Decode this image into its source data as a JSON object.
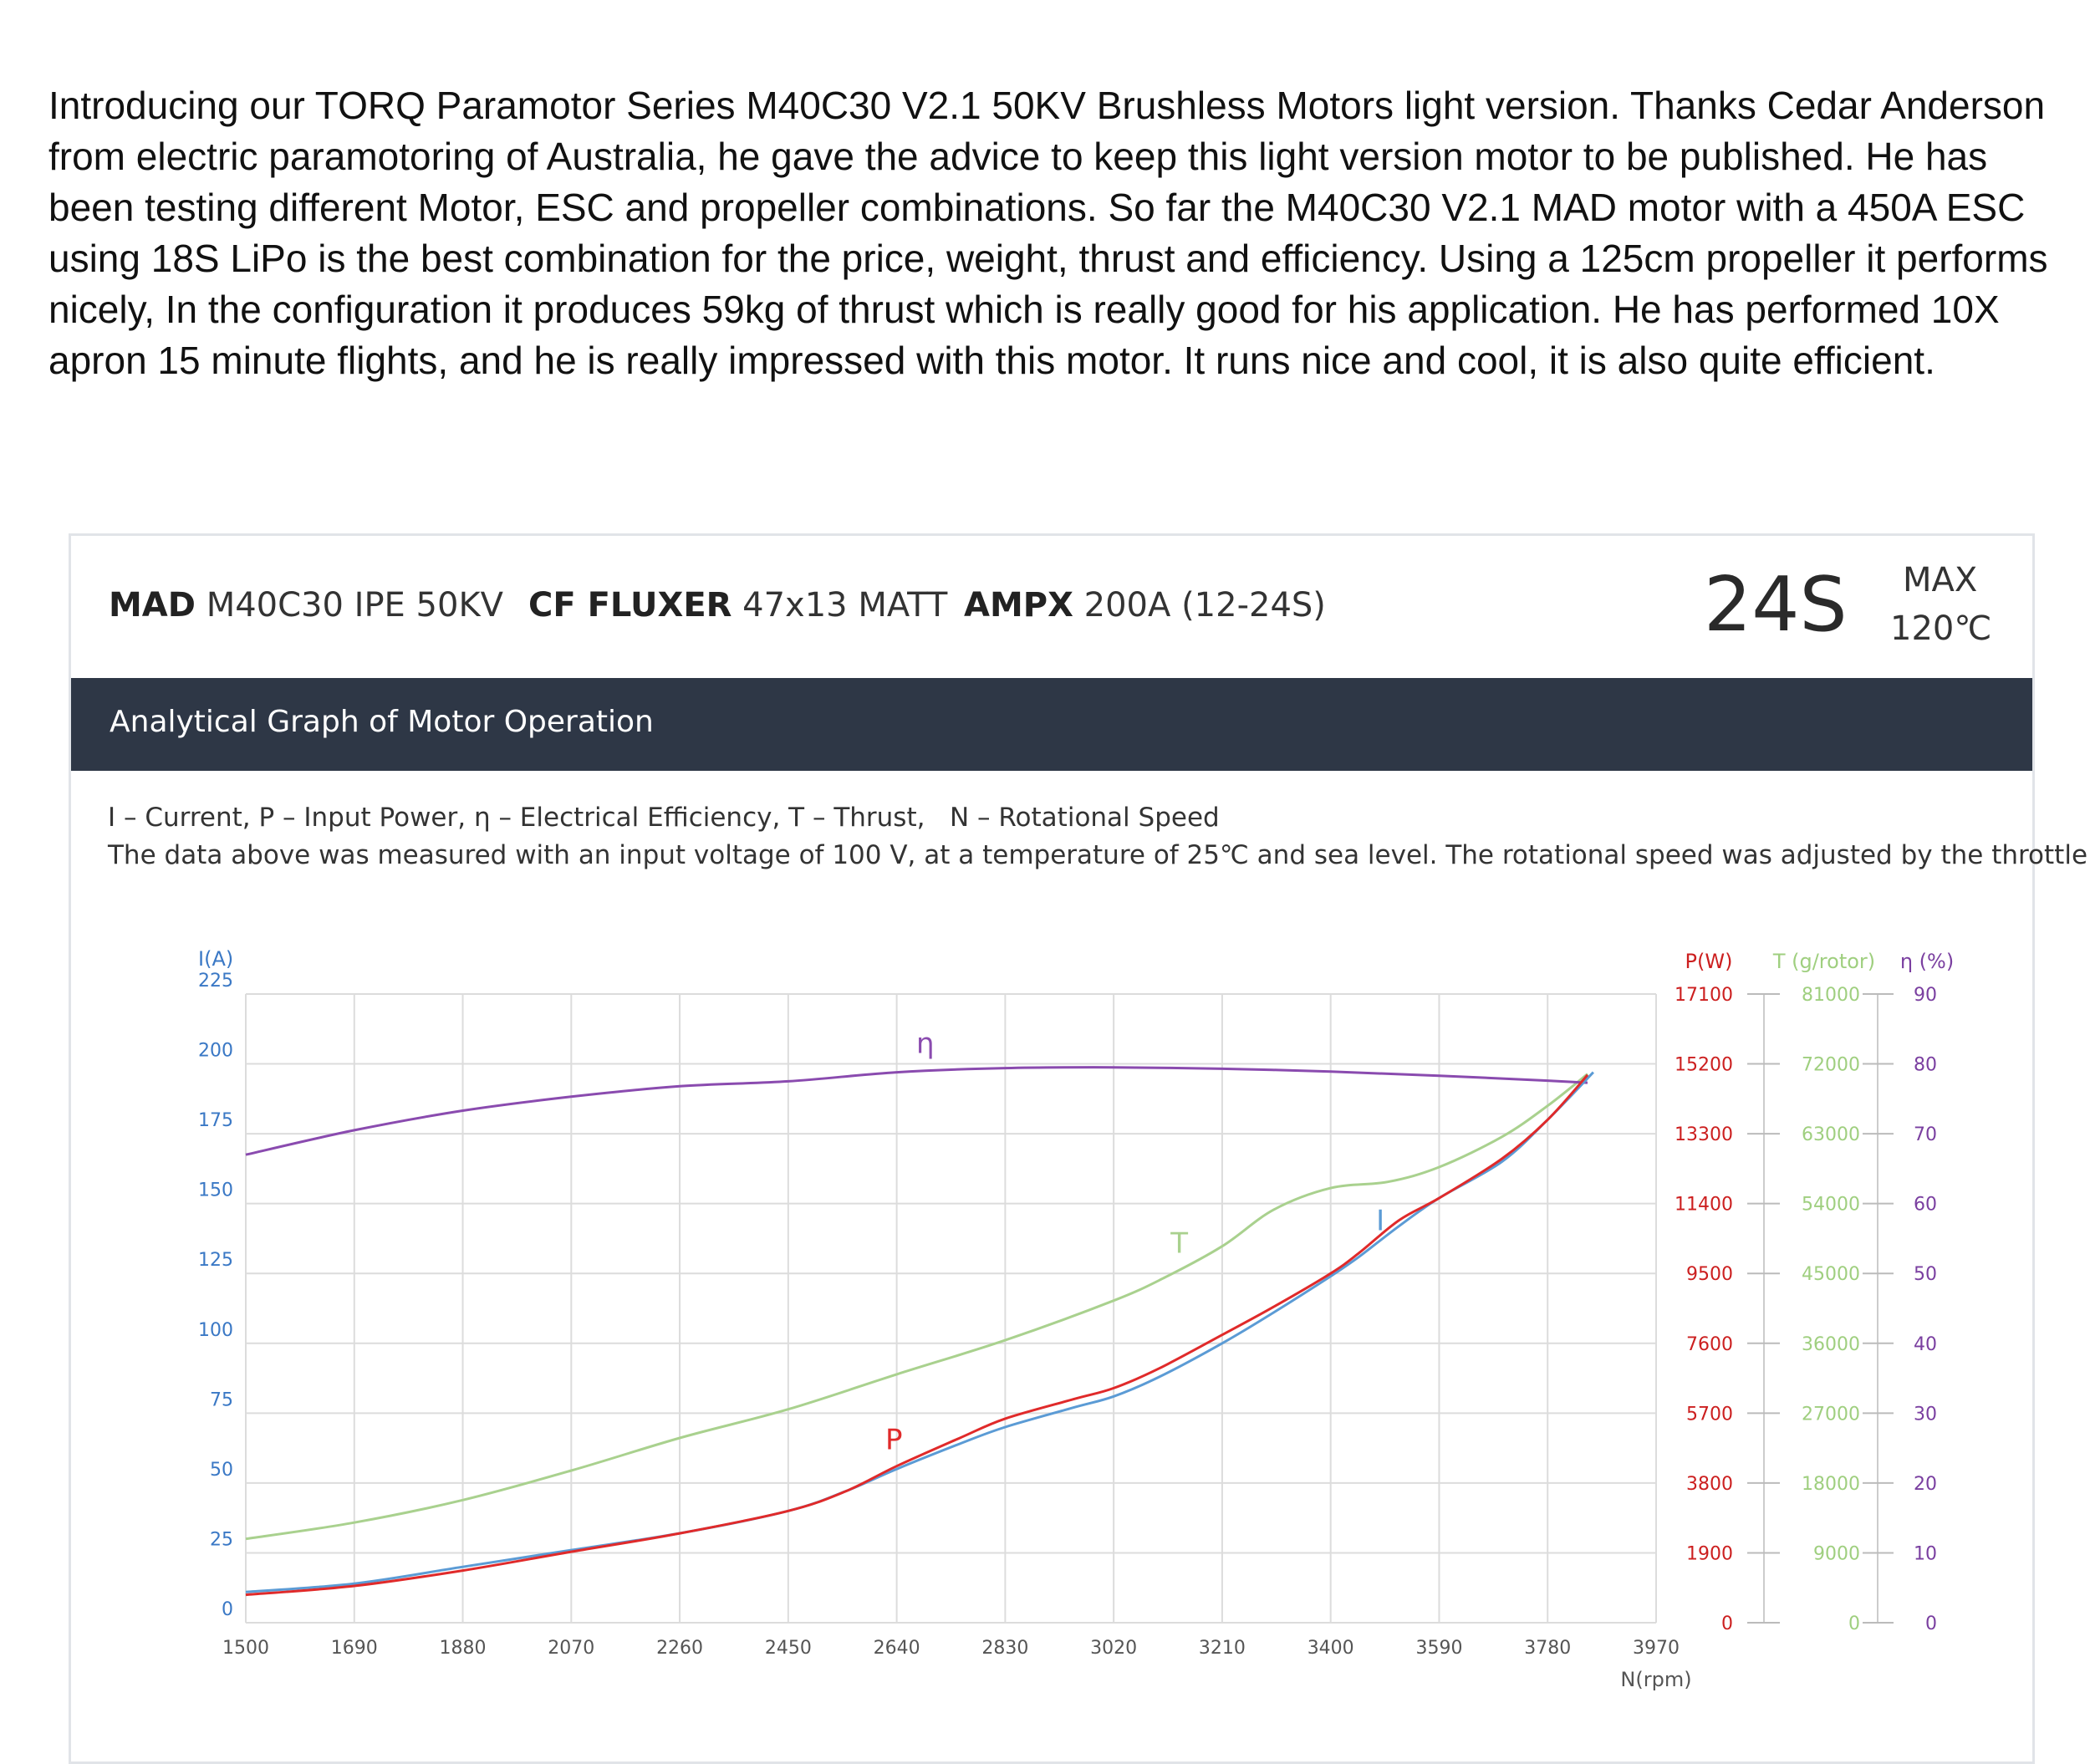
{
  "intro": "Introducing our TORQ Paramotor Series M40C30 V2.1 50KV Brushless Motors light version. Thanks Cedar Anderson from electric paramotoring of Australia, he gave the advice to keep this light version motor to be published. He has been testing different Motor, ESC and propeller combinations. So far the M40C30 V2.1 MAD motor with a 450A ESC using 18S LiPo is the best combination for the price, weight, thrust and efficiency. Using a 125cm propeller it performs nicely, In the configuration it produces 59kg of thrust which is really good for his application. He has performed 10X apron 15 minute flights, and he is really impressed with this motor. It runs nice and cool, it is also quite efficient.",
  "card": {
    "motor_brand": "MAD",
    "motor_model": "M40C30 IPE 50KV",
    "prop_brand": "CF FLUXER",
    "prop_model": "47x13 MATT",
    "esc_brand": "AMPX",
    "esc_model": "200A (12-24S)",
    "cells": "24S",
    "max_label": "MAX",
    "max_temp": "120℃",
    "section_title": "Analytical Graph of Motor Operation",
    "legend_line": "I – Current, P – Input Power, η – Electrical Efficiency, T – Thrust,   N – Rotational Speed",
    "conditions": "The data above was measured with an input voltage of 100 V, at a temperature of 25℃ and sea level. The rotational speed was adjusted by the throttle."
  },
  "colors": {
    "current": "#5b9bd5",
    "power": "#e02a2a",
    "thrust": "#a9d18e",
    "efficiency": "#8a4baf",
    "left_axis": "#3a78c5",
    "power_axis": "#cc1f1f",
    "thrust_axis": "#9fcf7f",
    "eff_axis": "#7a3fa0",
    "grid": "#dcdcdc",
    "header_bar": "#2e3746"
  },
  "chart_data": {
    "type": "line",
    "xlabel": "N(rpm)",
    "x_ticks": [
      "1500",
      "1690",
      "1880",
      "2070",
      "2260",
      "2450",
      "2640",
      "2830",
      "3020",
      "3210",
      "3400",
      "3590",
      "3780",
      "3970"
    ],
    "xlim": [
      1500,
      3970
    ],
    "axes": {
      "current": {
        "label": "I(A)",
        "ticks": [
          "0",
          "25",
          "50",
          "75",
          "100",
          "125",
          "150",
          "175",
          "200",
          "225"
        ],
        "range": [
          0,
          225
        ]
      },
      "power": {
        "label": "P(W)",
        "ticks": [
          "0",
          "1900",
          "3800",
          "5700",
          "7600",
          "9500",
          "11400",
          "13300",
          "15200",
          "17100"
        ],
        "range": [
          0,
          17100
        ]
      },
      "thrust": {
        "label": "T (g/rotor)",
        "ticks": [
          "0",
          "9000",
          "18000",
          "27000",
          "36000",
          "45000",
          "54000",
          "63000",
          "72000",
          "81000"
        ],
        "range": [
          0,
          81000
        ]
      },
      "efficiency": {
        "label": "η (%)",
        "ticks": [
          "0",
          "10",
          "20",
          "30",
          "40",
          "50",
          "60",
          "70",
          "80",
          "90"
        ],
        "range": [
          0,
          90
        ]
      }
    },
    "series": [
      {
        "name": "I",
        "axis": "current",
        "x": [
          1500,
          1690,
          1880,
          2070,
          2260,
          2450,
          2550,
          2640,
          2750,
          2830,
          2950,
          3020,
          3100,
          3210,
          3300,
          3400,
          3450,
          3520,
          3590,
          3700,
          3780,
          3860
        ],
        "values": [
          11,
          14,
          20,
          26,
          32,
          40,
          47,
          55,
          64,
          70,
          77,
          81,
          88,
          100,
          111,
          124,
          131,
          142,
          152,
          165,
          180,
          197
        ]
      },
      {
        "name": "P",
        "axis": "power",
        "x": [
          1500,
          1690,
          1880,
          2070,
          2260,
          2450,
          2550,
          2640,
          2750,
          2830,
          2950,
          3020,
          3100,
          3210,
          3300,
          3400,
          3450,
          3520,
          3590,
          3700,
          3780,
          3850
        ],
        "values": [
          760,
          1000,
          1420,
          1930,
          2430,
          3040,
          3570,
          4260,
          5020,
          5550,
          6080,
          6380,
          6920,
          7830,
          8590,
          9500,
          10060,
          10950,
          11550,
          12620,
          13680,
          14900
        ]
      },
      {
        "name": "T",
        "axis": "thrust",
        "x": [
          1500,
          1690,
          1880,
          2070,
          2260,
          2450,
          2640,
          2830,
          3020,
          3110,
          3210,
          3300,
          3400,
          3500,
          3590,
          3700,
          3780,
          3850
        ],
        "values": [
          10800,
          12900,
          15800,
          19600,
          23800,
          27500,
          32000,
          36400,
          41500,
          44500,
          48500,
          53200,
          56000,
          56800,
          58700,
          62600,
          66600,
          70700
        ]
      },
      {
        "name": "η",
        "axis": "efficiency",
        "x": [
          1500,
          1690,
          1880,
          2070,
          2260,
          2450,
          2640,
          2830,
          3020,
          3210,
          3400,
          3590,
          3780,
          3850
        ],
        "values": [
          67,
          70.5,
          73.3,
          75.3,
          76.8,
          77.5,
          78.8,
          79.4,
          79.5,
          79.3,
          78.9,
          78.3,
          77.6,
          77.3
        ]
      }
    ]
  }
}
